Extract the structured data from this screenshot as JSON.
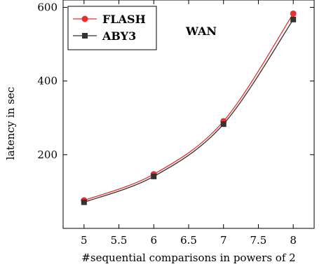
{
  "chart_data": {
    "type": "line",
    "title": "",
    "annotation": "WAN",
    "xlabel": "#sequential comparisons in powers of 2",
    "ylabel": "latency in sec",
    "x": [
      5,
      6,
      7,
      8
    ],
    "xlim": [
      4.7,
      8.3
    ],
    "ylim": [
      0,
      620
    ],
    "xticks": [
      5,
      5.5,
      6,
      6.5,
      7,
      7.5,
      8
    ],
    "xtick_labels": [
      "5",
      "5.5",
      "6",
      "6.5",
      "7",
      "7.5",
      "8"
    ],
    "yticks": [
      200,
      400,
      600
    ],
    "ytick_labels": [
      "200",
      "400",
      "600"
    ],
    "grid": false,
    "legend_position": "top-left",
    "series": [
      {
        "name": "FLASH",
        "values": [
          76,
          147,
          291,
          583
        ],
        "color": "#e8302f",
        "marker": "circle"
      },
      {
        "name": "ABY3",
        "values": [
          71,
          141,
          283,
          567
        ],
        "color": "#333333",
        "marker": "square"
      }
    ]
  }
}
